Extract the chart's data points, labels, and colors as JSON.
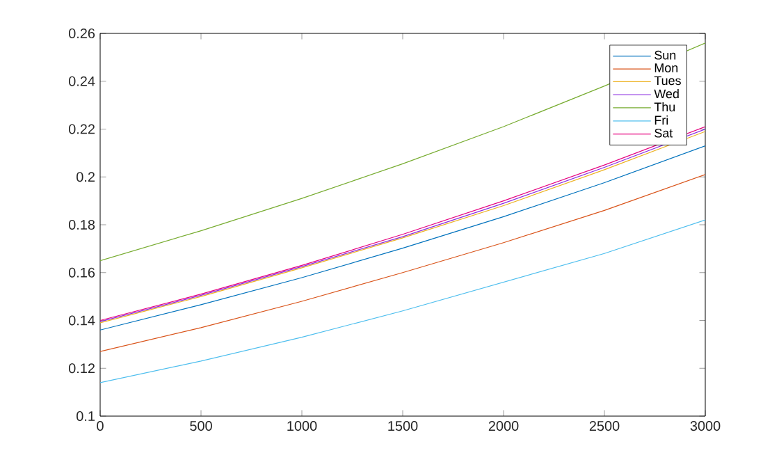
{
  "chart_data": {
    "type": "line",
    "x": [
      0,
      500,
      1000,
      1500,
      2000,
      2500,
      3000
    ],
    "series": [
      {
        "name": "Sun",
        "color": "#0072bd",
        "values": [
          0.136,
          0.1466,
          0.1579,
          0.1702,
          0.1834,
          0.1976,
          0.213
        ]
      },
      {
        "name": "Mon",
        "color": "#d95319",
        "values": [
          0.127,
          0.137,
          0.148,
          0.16,
          0.1725,
          0.186,
          0.201
        ]
      },
      {
        "name": "Tues",
        "color": "#edb120",
        "values": [
          0.139,
          0.15,
          0.162,
          0.1745,
          0.188,
          0.203,
          0.219
        ]
      },
      {
        "name": "Wed",
        "color": "#8a2be2",
        "values": [
          0.1395,
          0.1505,
          0.1625,
          0.175,
          0.189,
          0.204,
          0.22
        ]
      },
      {
        "name": "Thu",
        "color": "#77ac30",
        "values": [
          0.165,
          0.1775,
          0.191,
          0.2055,
          0.221,
          0.238,
          0.256
        ]
      },
      {
        "name": "Fri",
        "color": "#4dbeee",
        "values": [
          0.114,
          0.123,
          0.133,
          0.144,
          0.156,
          0.168,
          0.182
        ]
      },
      {
        "name": "Sat",
        "color": "#e6007e",
        "values": [
          0.14,
          0.151,
          0.163,
          0.176,
          0.19,
          0.205,
          0.221
        ]
      }
    ],
    "xlim": [
      0,
      3000
    ],
    "ylim": [
      0.1,
      0.26
    ],
    "xticks": [
      0,
      500,
      1000,
      1500,
      2000,
      2500,
      3000
    ],
    "yticks": [
      0.1,
      0.12,
      0.14,
      0.16,
      0.18,
      0.2,
      0.22,
      0.24,
      0.26
    ],
    "legend": "top right",
    "grid": false,
    "marker": "none",
    "line_style": "solid"
  }
}
